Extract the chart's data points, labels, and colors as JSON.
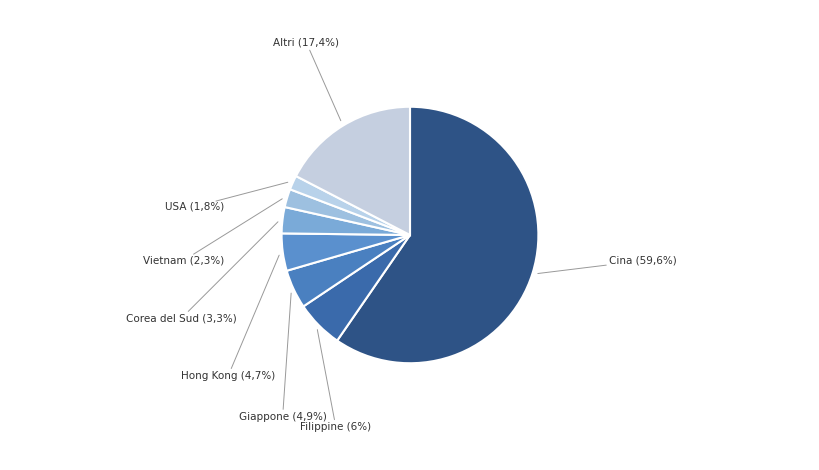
{
  "labels": [
    "Cina",
    "Filippine",
    "Giappone",
    "Hong Kong",
    "Corea del Sud",
    "Vietnam",
    "USA",
    "Altri"
  ],
  "values": [
    59.6,
    6.0,
    4.9,
    4.7,
    3.3,
    2.3,
    1.8,
    17.4
  ],
  "colors": [
    "#2e5386",
    "#3a6aab",
    "#4a80c0",
    "#5a90ce",
    "#7aaad8",
    "#9dc0e0",
    "#b8d2ea",
    "#c5cfe0"
  ],
  "label_texts": [
    "Cina (59,6%)",
    "Filippine (6%)",
    "Giappone (4,9%)",
    "Hong Kong (4,7%)",
    "Corea del Sud (3,3%)",
    "Vietnam (2,3%)",
    "USA (1,8%)",
    "Altri (17,4%)"
  ],
  "background_color": "#ffffff",
  "figure_bg": "#ffffff"
}
